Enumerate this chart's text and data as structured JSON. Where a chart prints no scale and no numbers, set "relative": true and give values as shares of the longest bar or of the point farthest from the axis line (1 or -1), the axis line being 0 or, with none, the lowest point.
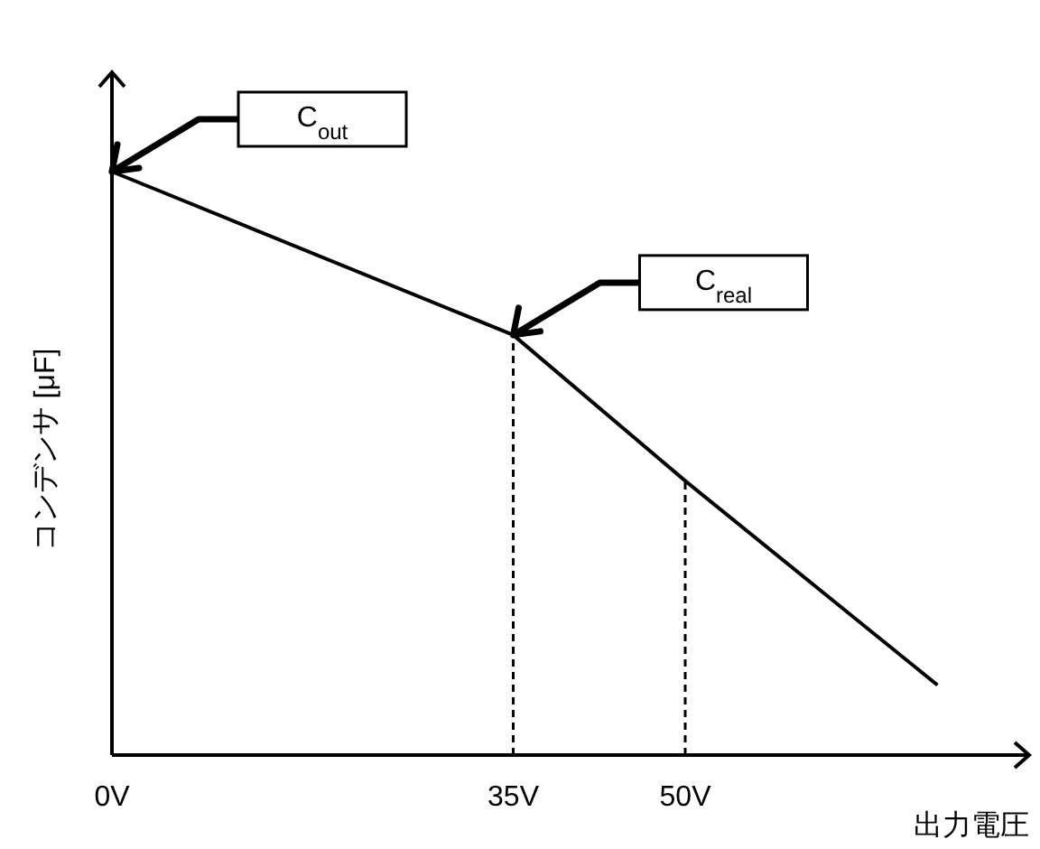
{
  "chart_data": {
    "type": "line",
    "relative": true,
    "xlabel": "出力電圧",
    "ylabel": "コンデンサ  [μF]",
    "xlim": [
      0,
      80
    ],
    "xticks": [
      {
        "value": 0,
        "label": "0V"
      },
      {
        "value": 35,
        "label": "35V"
      },
      {
        "value": 50,
        "label": "50V"
      }
    ],
    "tick_labels": "x",
    "line_style": "solid",
    "series": [
      {
        "color": "#000000",
        "x": [
          0,
          35,
          50,
          72
        ],
        "values": [
          1,
          0.72,
          0.47,
          0.12
        ]
      }
    ],
    "ref_lines": [
      {
        "axis": "x",
        "value": 35,
        "line_style": "dashed",
        "color": "#000000"
      },
      {
        "axis": "x",
        "value": 50,
        "line_style": "dashed",
        "color": "#000000"
      }
    ],
    "annotations": [
      {
        "text": "C$_{out}$",
        "x": 0,
        "y": 1
      },
      {
        "text": "C$_{real}$",
        "x": 35,
        "y": 0.72
      }
    ]
  }
}
